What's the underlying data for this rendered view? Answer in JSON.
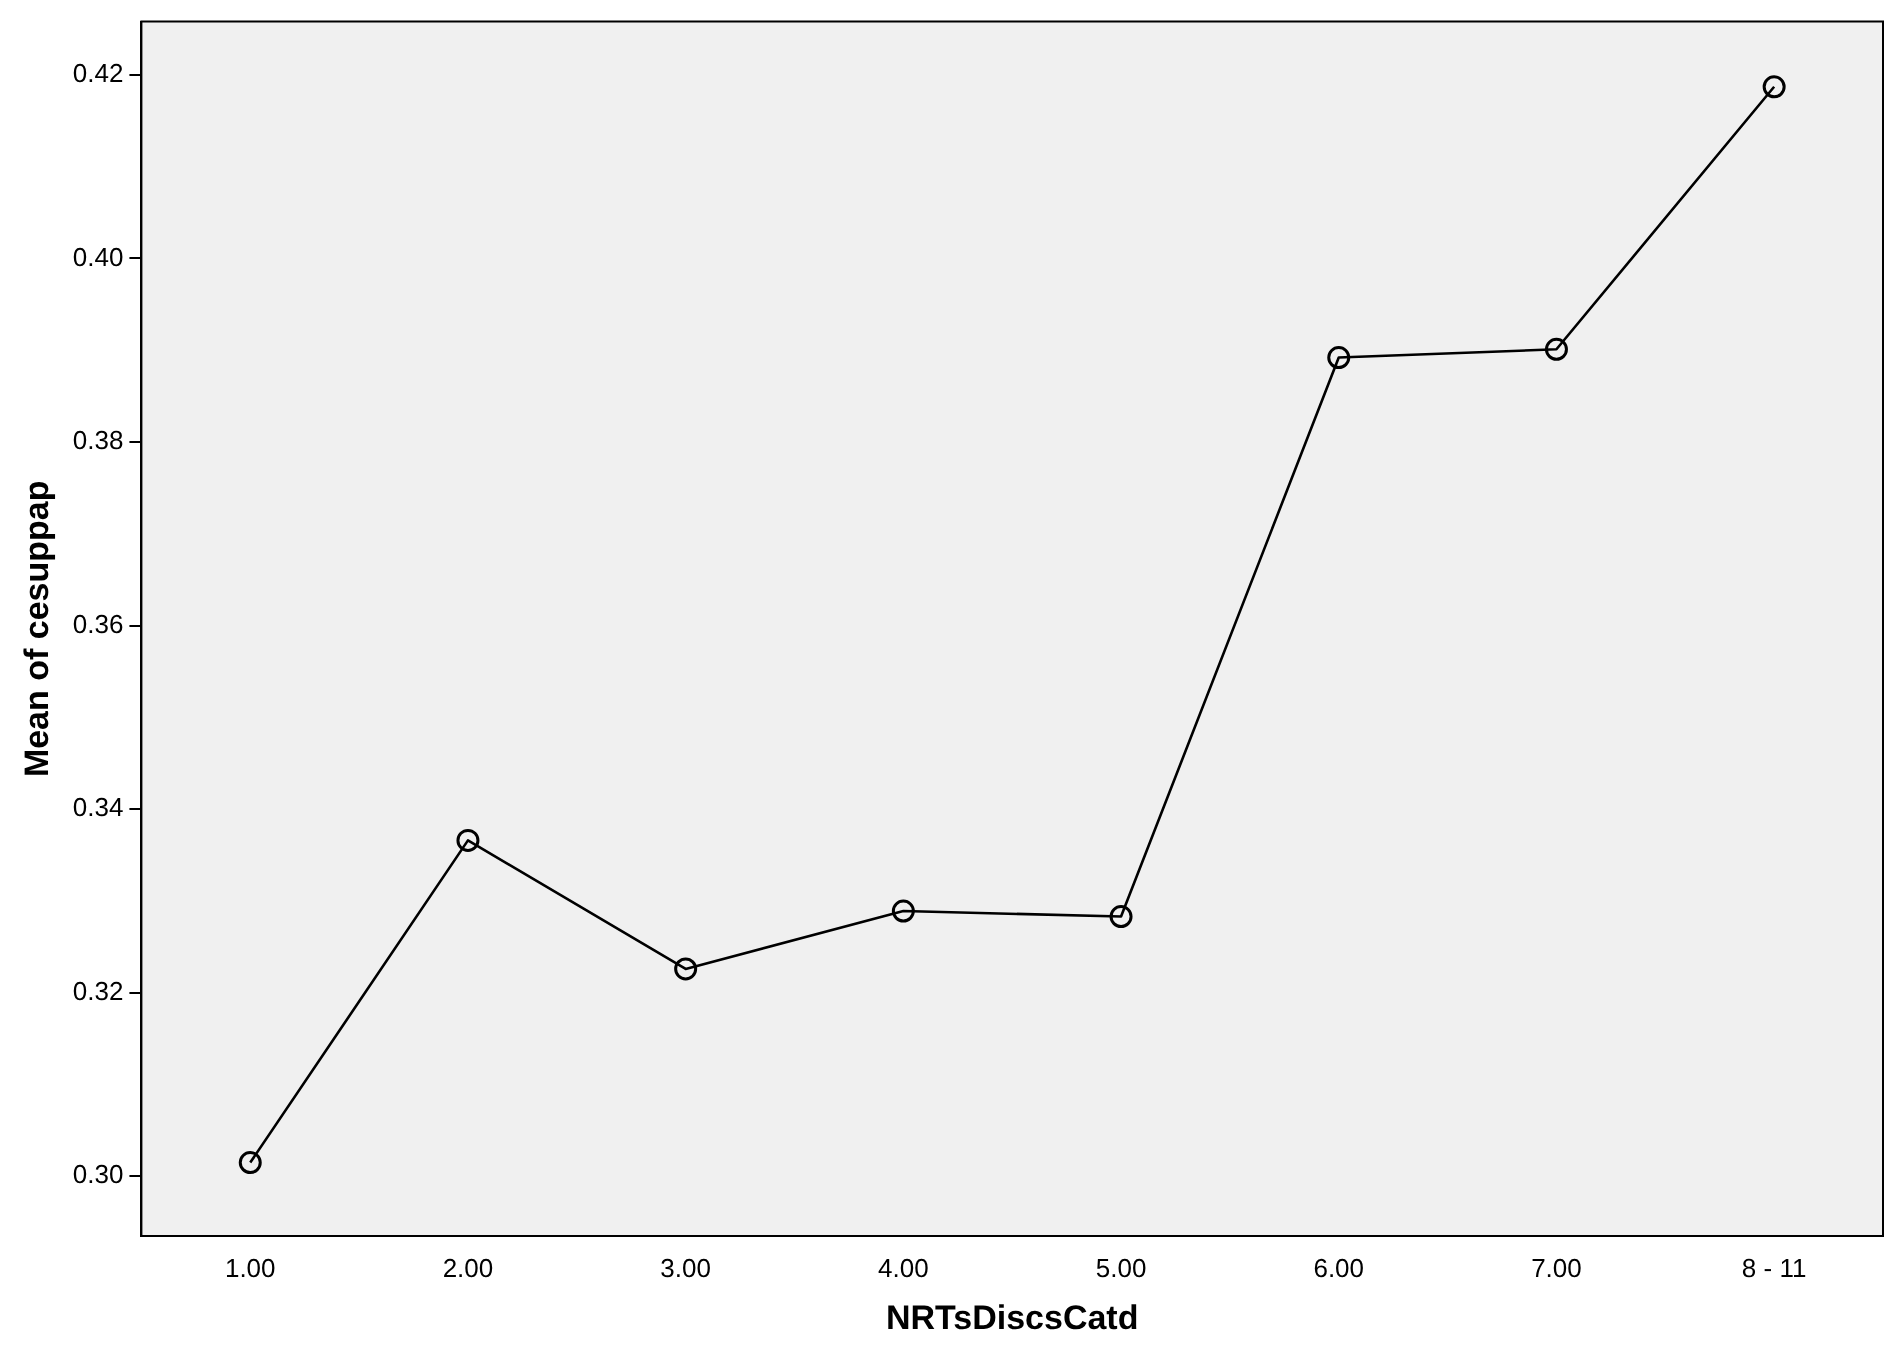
{
  "chart_data": {
    "type": "line",
    "xlabel": "NRTsDiscsCatd",
    "ylabel": "Mean of cesuppap",
    "categories": [
      "1.00",
      "2.00",
      "3.00",
      "4.00",
      "5.00",
      "6.00",
      "7.00",
      "8 - 11"
    ],
    "series": [
      {
        "color": "#000000",
        "values": [
          0.3015,
          0.3366,
          0.3226,
          0.3289,
          0.3283,
          0.3892,
          0.3901,
          0.4187
        ]
      }
    ],
    "ylim": [
      0.2935,
      0.4258
    ],
    "yticks": [
      {
        "value": 0.3,
        "label": "0.30"
      },
      {
        "value": 0.32,
        "label": "0.32"
      },
      {
        "value": 0.34,
        "label": "0.34"
      },
      {
        "value": 0.36,
        "label": "0.36"
      },
      {
        "value": 0.38,
        "label": "0.38"
      },
      {
        "value": 0.4,
        "label": "0.40"
      },
      {
        "value": 0.42,
        "label": "0.42"
      }
    ],
    "grid": false,
    "legend": false,
    "marker": "circle",
    "line_style": "solid"
  }
}
